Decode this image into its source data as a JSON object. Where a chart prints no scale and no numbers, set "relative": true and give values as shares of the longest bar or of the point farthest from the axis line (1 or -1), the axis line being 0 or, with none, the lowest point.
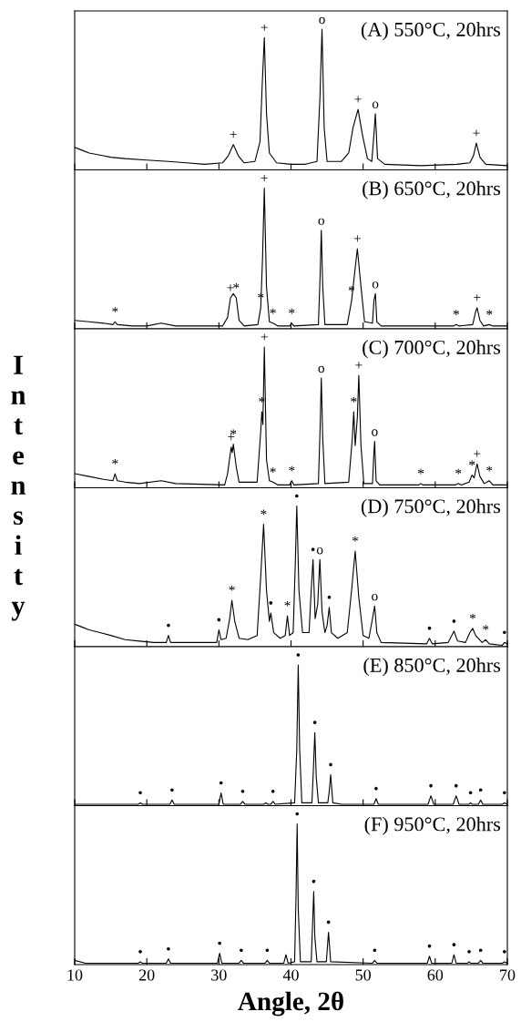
{
  "chart_data": [
    {
      "type": "line",
      "title": "(A) 550°C, 20hrs",
      "relative": true,
      "xlim": [
        10,
        70
      ],
      "xticks": [
        10,
        20,
        30,
        40,
        50,
        60,
        70
      ],
      "tick_labels": false,
      "series": [
        {
          "color": "#000000",
          "x": [
            10,
            11,
            12,
            13,
            14,
            15,
            17,
            20,
            23,
            25.5,
            28,
            30.5,
            31.3,
            32.0,
            32.7,
            33.5,
            35.0,
            35.7,
            36.0,
            36.3,
            36.6,
            37.0,
            38,
            40,
            42,
            43.6,
            44.0,
            44.3,
            44.6,
            45.0,
            47,
            48.0,
            48.6,
            49.3,
            49.9,
            50.6,
            51.2,
            51.5,
            51.7,
            52.0,
            53,
            58,
            63,
            64.8,
            65.3,
            65.7,
            66.2,
            67,
            70
          ],
          "values": [
            0.16,
            0.14,
            0.12,
            0.11,
            0.1,
            0.09,
            0.08,
            0.07,
            0.06,
            0.05,
            0.04,
            0.05,
            0.1,
            0.18,
            0.1,
            0.05,
            0.06,
            0.2,
            0.6,
            0.94,
            0.4,
            0.12,
            0.05,
            0.04,
            0.04,
            0.06,
            0.5,
            1.0,
            0.3,
            0.06,
            0.06,
            0.12,
            0.3,
            0.43,
            0.25,
            0.08,
            0.06,
            0.25,
            0.4,
            0.08,
            0.04,
            0.03,
            0.04,
            0.05,
            0.1,
            0.19,
            0.09,
            0.04,
            0.03
          ]
        }
      ],
      "annotations": [
        {
          "text": "+",
          "x": 36.3,
          "y": 0.94
        },
        {
          "text": "o",
          "x": 44.3,
          "y": 1.0
        },
        {
          "text": "+",
          "x": 32.0,
          "y": 0.18
        },
        {
          "text": "+",
          "x": 49.3,
          "y": 0.43
        },
        {
          "text": "o",
          "x": 51.7,
          "y": 0.4
        },
        {
          "text": "+",
          "x": 65.7,
          "y": 0.19
        }
      ]
    },
    {
      "type": "line",
      "title": "(B) 650°C, 20hrs",
      "relative": true,
      "xlim": [
        10,
        70
      ],
      "xticks": [
        10,
        20,
        30,
        40,
        50,
        60,
        70
      ],
      "tick_labels": false,
      "series": [
        {
          "color": "#000000",
          "x": [
            10,
            12,
            14,
            15.3,
            15.6,
            15.9,
            18,
            20,
            22,
            24,
            30.5,
            31.2,
            31.6,
            32.0,
            32.4,
            32.8,
            33.5,
            35.4,
            35.8,
            36.05,
            36.3,
            36.6,
            37.0,
            37.5,
            38.2,
            39.8,
            40.1,
            40.4,
            43.8,
            44.05,
            44.2,
            44.4,
            44.7,
            47.8,
            48.4,
            49.2,
            49.7,
            50.2,
            51.3,
            51.5,
            51.7,
            51.9,
            52.5,
            62.5,
            62.9,
            63.3,
            65.2,
            65.6,
            65.8,
            66.2,
            66.7,
            67.5,
            68,
            70
          ],
          "values": [
            0.06,
            0.05,
            0.04,
            0.03,
            0.05,
            0.03,
            0.02,
            0.02,
            0.04,
            0.02,
            0.02,
            0.08,
            0.22,
            0.25,
            0.22,
            0.06,
            0.02,
            0.03,
            0.15,
            0.5,
            1.0,
            0.3,
            0.05,
            0.04,
            0.02,
            0.02,
            0.04,
            0.02,
            0.03,
            0.4,
            0.7,
            0.3,
            0.03,
            0.03,
            0.2,
            0.57,
            0.3,
            0.05,
            0.04,
            0.2,
            0.25,
            0.05,
            0.02,
            0.02,
            0.03,
            0.02,
            0.03,
            0.12,
            0.15,
            0.06,
            0.02,
            0.03,
            0.02,
            0.02
          ]
        }
      ],
      "annotations": [
        {
          "text": "+",
          "x": 36.3,
          "y": 1.0
        },
        {
          "text": "o",
          "x": 44.2,
          "y": 0.7
        },
        {
          "text": "+",
          "x": 49.2,
          "y": 0.57
        },
        {
          "text": "*",
          "x": 48.4,
          "y": 0.2
        },
        {
          "text": "o",
          "x": 51.7,
          "y": 0.25
        },
        {
          "text": "+",
          "x": 65.8,
          "y": 0.15
        },
        {
          "text": "*",
          "x": 35.8,
          "y": 0.15
        },
        {
          "text": "+",
          "x": 31.6,
          "y": 0.22
        },
        {
          "text": "*",
          "x": 32.4,
          "y": 0.22
        },
        {
          "text": "*",
          "x": 15.6,
          "y": 0.05
        },
        {
          "text": "*",
          "x": 37.5,
          "y": 0.04
        },
        {
          "text": "*",
          "x": 40.1,
          "y": 0.04
        },
        {
          "text": "*",
          "x": 62.9,
          "y": 0.03
        },
        {
          "text": "*",
          "x": 67.5,
          "y": 0.03
        }
      ]
    },
    {
      "type": "line",
      "title": "(C) 700°C, 20hrs",
      "ylabel": "Intensity",
      "relative": true,
      "xlim": [
        10,
        70
      ],
      "xticks": [
        10,
        20,
        30,
        40,
        50,
        60,
        70
      ],
      "tick_labels": false,
      "series": [
        {
          "color": "#000000",
          "x": [
            10,
            12,
            14,
            15.3,
            15.6,
            15.9,
            17,
            19,
            22,
            24,
            30.8,
            31.2,
            31.7,
            31.85,
            32.0,
            32.4,
            32.8,
            35.3,
            35.8,
            35.95,
            36.1,
            36.3,
            36.6,
            37.0,
            37.5,
            38.2,
            39.8,
            40.1,
            40.4,
            43.8,
            44.05,
            44.2,
            44.4,
            44.7,
            48.0,
            48.5,
            48.7,
            48.9,
            49.2,
            49.4,
            49.7,
            50.1,
            51.3,
            51.5,
            51.6,
            51.8,
            52.3,
            57.7,
            58.0,
            58.3,
            62.8,
            63.2,
            63.6,
            64.7,
            65.1,
            65.4,
            65.8,
            66.2,
            66.8,
            67.5,
            68.0,
            70
          ],
          "values": [
            0.1,
            0.08,
            0.06,
            0.05,
            0.1,
            0.05,
            0.04,
            0.03,
            0.05,
            0.03,
            0.02,
            0.1,
            0.29,
            0.25,
            0.31,
            0.15,
            0.04,
            0.04,
            0.4,
            0.54,
            0.45,
            1.0,
            0.2,
            0.05,
            0.04,
            0.02,
            0.02,
            0.05,
            0.02,
            0.03,
            0.45,
            0.78,
            0.35,
            0.03,
            0.04,
            0.35,
            0.54,
            0.3,
            0.5,
            0.8,
            0.3,
            0.03,
            0.03,
            0.25,
            0.33,
            0.05,
            0.02,
            0.02,
            0.03,
            0.02,
            0.02,
            0.03,
            0.02,
            0.04,
            0.09,
            0.07,
            0.17,
            0.08,
            0.03,
            0.05,
            0.02,
            0.02
          ]
        }
      ],
      "annotations": [
        {
          "text": "+",
          "x": 36.3,
          "y": 1.0
        },
        {
          "text": "o",
          "x": 44.2,
          "y": 0.78
        },
        {
          "text": "+",
          "x": 49.4,
          "y": 0.8
        },
        {
          "text": "*",
          "x": 48.7,
          "y": 0.54
        },
        {
          "text": "o",
          "x": 51.6,
          "y": 0.33
        },
        {
          "text": "*",
          "x": 35.95,
          "y": 0.54
        },
        {
          "text": "+",
          "x": 31.7,
          "y": 0.29
        },
        {
          "text": "*",
          "x": 32.0,
          "y": 0.31
        },
        {
          "text": "+",
          "x": 65.8,
          "y": 0.17
        },
        {
          "text": "*",
          "x": 15.6,
          "y": 0.1
        },
        {
          "text": "*",
          "x": 37.5,
          "y": 0.04
        },
        {
          "text": "*",
          "x": 40.1,
          "y": 0.05
        },
        {
          "text": "*",
          "x": 58.0,
          "y": 0.03
        },
        {
          "text": "*",
          "x": 63.2,
          "y": 0.03
        },
        {
          "text": "*",
          "x": 65.1,
          "y": 0.09
        },
        {
          "text": "*",
          "x": 67.5,
          "y": 0.05
        }
      ]
    },
    {
      "type": "line",
      "title": "(D) 750°C, 20hrs",
      "relative": true,
      "xlim": [
        10,
        70
      ],
      "xticks": [
        10,
        20,
        30,
        40,
        50,
        60,
        70
      ],
      "tick_labels": false,
      "series": [
        {
          "color": "#000000",
          "x": [
            10,
            11,
            12,
            13.5,
            15,
            17,
            19,
            21,
            22.7,
            23.0,
            23.3,
            29.7,
            30.0,
            30.3,
            31.0,
            31.5,
            31.8,
            32.2,
            32.8,
            34.0,
            35.3,
            35.8,
            36.2,
            36.6,
            37.0,
            37.2,
            37.6,
            38.5,
            39.2,
            39.5,
            39.8,
            40.3,
            40.6,
            40.8,
            41.1,
            41.6,
            42.5,
            42.8,
            43.05,
            43.35,
            43.7,
            44.0,
            44.3,
            44.7,
            45.0,
            45.3,
            45.6,
            46.5,
            47.8,
            48.4,
            48.9,
            49.4,
            50.0,
            50.8,
            51.3,
            51.6,
            51.9,
            52.5,
            58.8,
            59.2,
            59.6,
            61.8,
            62.6,
            63.1,
            64.2,
            64.8,
            65.2,
            65.6,
            66.5,
            67.0,
            67.5,
            69.3,
            69.6,
            70
          ],
          "values": [
            0.16,
            0.14,
            0.12,
            0.1,
            0.08,
            0.05,
            0.04,
            0.03,
            0.03,
            0.08,
            0.03,
            0.03,
            0.12,
            0.05,
            0.06,
            0.2,
            0.33,
            0.18,
            0.06,
            0.05,
            0.08,
            0.5,
            0.87,
            0.4,
            0.18,
            0.24,
            0.1,
            0.06,
            0.08,
            0.22,
            0.08,
            0.1,
            0.6,
            1.0,
            0.4,
            0.1,
            0.1,
            0.4,
            0.62,
            0.2,
            0.3,
            0.62,
            0.25,
            0.1,
            0.15,
            0.28,
            0.1,
            0.06,
            0.1,
            0.4,
            0.68,
            0.35,
            0.08,
            0.06,
            0.2,
            0.29,
            0.1,
            0.03,
            0.02,
            0.06,
            0.02,
            0.03,
            0.11,
            0.04,
            0.03,
            0.1,
            0.13,
            0.08,
            0.03,
            0.05,
            0.02,
            0.01,
            0.03,
            0.02
          ]
        }
      ],
      "annotations": [
        {
          "text": "•",
          "x": 40.8,
          "y": 1.0
        },
        {
          "text": "*",
          "x": 36.2,
          "y": 0.87
        },
        {
          "text": "•",
          "x": 43.05,
          "y": 0.62
        },
        {
          "text": "o",
          "x": 44.0,
          "y": 0.62
        },
        {
          "text": "*",
          "x": 48.9,
          "y": 0.68
        },
        {
          "text": "o",
          "x": 51.6,
          "y": 0.29
        },
        {
          "text": "*",
          "x": 31.8,
          "y": 0.33
        },
        {
          "text": "•",
          "x": 37.2,
          "y": 0.24
        },
        {
          "text": "*",
          "x": 39.5,
          "y": 0.22
        },
        {
          "text": "•",
          "x": 45.3,
          "y": 0.28
        },
        {
          "text": "•",
          "x": 23.0,
          "y": 0.08
        },
        {
          "text": "•",
          "x": 30.0,
          "y": 0.12
        },
        {
          "text": "•",
          "x": 59.2,
          "y": 0.06
        },
        {
          "text": "•",
          "x": 62.6,
          "y": 0.11
        },
        {
          "text": "*",
          "x": 65.2,
          "y": 0.13
        },
        {
          "text": "*",
          "x": 67.0,
          "y": 0.05
        },
        {
          "text": "•",
          "x": 69.6,
          "y": 0.03
        }
      ]
    },
    {
      "type": "line",
      "title": "(E) 850°C, 20hrs",
      "relative": true,
      "xlim": [
        10,
        70
      ],
      "xticks": [
        10,
        20,
        30,
        40,
        50,
        60,
        70
      ],
      "tick_labels": false,
      "series": [
        {
          "color": "#000000",
          "x": [
            10,
            18.8,
            19.1,
            19.4,
            23.2,
            23.5,
            23.8,
            30.0,
            30.3,
            30.6,
            33.0,
            33.3,
            33.6,
            36.2,
            36.5,
            36.8,
            37.2,
            37.5,
            37.8,
            40.5,
            40.8,
            41.0,
            41.2,
            41.5,
            42.9,
            43.1,
            43.3,
            43.5,
            43.8,
            45.1,
            45.3,
            45.5,
            45.8,
            47,
            51.5,
            51.8,
            52.1,
            59.0,
            59.4,
            59.8,
            62.5,
            62.9,
            63.3,
            64.7,
            64.9,
            65.1,
            66.0,
            66.3,
            66.6,
            69.3,
            69.6,
            70
          ],
          "values": [
            0.01,
            0.01,
            0.02,
            0.01,
            0.01,
            0.04,
            0.01,
            0.01,
            0.09,
            0.01,
            0.01,
            0.03,
            0.01,
            0.01,
            0.02,
            0.01,
            0.01,
            0.03,
            0.01,
            0.02,
            0.4,
            1.0,
            0.4,
            0.02,
            0.02,
            0.25,
            0.52,
            0.2,
            0.02,
            0.02,
            0.1,
            0.22,
            0.02,
            0.01,
            0.01,
            0.05,
            0.01,
            0.01,
            0.07,
            0.01,
            0.01,
            0.07,
            0.01,
            0.01,
            0.02,
            0.01,
            0.01,
            0.04,
            0.01,
            0.01,
            0.02,
            0.01
          ]
        }
      ],
      "annotations": [
        {
          "text": "•",
          "x": 41.0,
          "y": 1.0
        },
        {
          "text": "•",
          "x": 43.3,
          "y": 0.52
        },
        {
          "text": "•",
          "x": 45.5,
          "y": 0.22
        },
        {
          "text": "•",
          "x": 19.1,
          "y": 0.02
        },
        {
          "text": "•",
          "x": 23.5,
          "y": 0.04
        },
        {
          "text": "•",
          "x": 30.3,
          "y": 0.09
        },
        {
          "text": "•",
          "x": 33.3,
          "y": 0.03
        },
        {
          "text": "•",
          "x": 37.5,
          "y": 0.03
        },
        {
          "text": "•",
          "x": 51.8,
          "y": 0.05
        },
        {
          "text": "•",
          "x": 59.4,
          "y": 0.07
        },
        {
          "text": "•",
          "x": 62.9,
          "y": 0.07
        },
        {
          "text": "•",
          "x": 64.9,
          "y": 0.02
        },
        {
          "text": "•",
          "x": 66.3,
          "y": 0.04
        },
        {
          "text": "•",
          "x": 69.6,
          "y": 0.02
        }
      ]
    },
    {
      "type": "line",
      "title": "(F) 950°C, 20hrs",
      "xlabel": "Angle, 2θ",
      "relative": true,
      "xlim": [
        10,
        70
      ],
      "xticks": [
        10,
        20,
        30,
        40,
        50,
        60,
        70
      ],
      "tick_labels": "x",
      "series": [
        {
          "color": "#000000",
          "x": [
            10,
            11.5,
            18.8,
            19.1,
            19.4,
            22.7,
            23.0,
            23.3,
            29.8,
            30.1,
            30.4,
            32.8,
            33.1,
            33.4,
            36.4,
            36.7,
            37.0,
            39.0,
            39.3,
            39.6,
            40.5,
            40.7,
            40.85,
            41.0,
            41.3,
            42.8,
            43.0,
            43.15,
            43.3,
            43.6,
            44.9,
            45.2,
            45.5,
            51.3,
            51.6,
            51.9,
            58.9,
            59.2,
            59.5,
            62.3,
            62.6,
            62.9,
            64.5,
            64.7,
            64.9,
            66.0,
            66.3,
            66.6,
            69.3,
            69.6,
            70
          ],
          "values": [
            0.03,
            0.01,
            0.01,
            0.02,
            0.01,
            0.01,
            0.04,
            0.01,
            0.01,
            0.08,
            0.01,
            0.01,
            0.03,
            0.01,
            0.01,
            0.03,
            0.01,
            0.01,
            0.07,
            0.01,
            0.02,
            0.5,
            1.0,
            0.4,
            0.02,
            0.02,
            0.3,
            0.52,
            0.2,
            0.02,
            0.02,
            0.23,
            0.02,
            0.01,
            0.03,
            0.01,
            0.01,
            0.06,
            0.01,
            0.01,
            0.07,
            0.01,
            0.01,
            0.02,
            0.01,
            0.01,
            0.03,
            0.01,
            0.01,
            0.02,
            0.01
          ]
        }
      ],
      "annotations": [
        {
          "text": "•",
          "x": 40.85,
          "y": 1.0
        },
        {
          "text": "•",
          "x": 43.15,
          "y": 0.52
        },
        {
          "text": "•",
          "x": 45.2,
          "y": 0.23
        },
        {
          "text": "•",
          "x": 19.1,
          "y": 0.02
        },
        {
          "text": "•",
          "x": 23.0,
          "y": 0.04
        },
        {
          "text": "•",
          "x": 30.1,
          "y": 0.08
        },
        {
          "text": "•",
          "x": 33.1,
          "y": 0.03
        },
        {
          "text": "•",
          "x": 36.7,
          "y": 0.03
        },
        {
          "text": "•",
          "x": 51.6,
          "y": 0.03
        },
        {
          "text": "•",
          "x": 59.2,
          "y": 0.06
        },
        {
          "text": "•",
          "x": 62.6,
          "y": 0.07
        },
        {
          "text": "•",
          "x": 64.7,
          "y": 0.02
        },
        {
          "text": "•",
          "x": 66.3,
          "y": 0.03
        },
        {
          "text": "•",
          "x": 69.6,
          "y": 0.02
        }
      ]
    }
  ]
}
